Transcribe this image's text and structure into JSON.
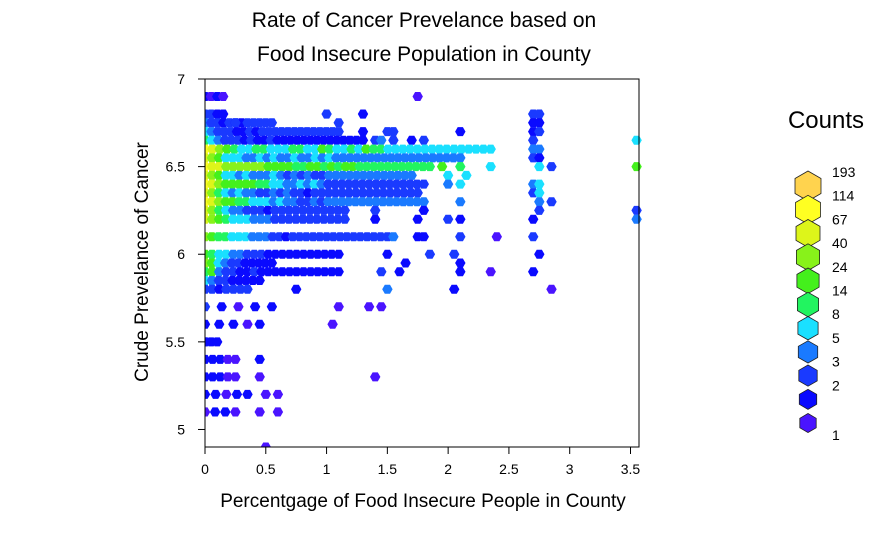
{
  "chart_data": {
    "type": "hexbin",
    "title": [
      "Rate of Cancer Prevelance based on",
      "Food Insecure Population in County"
    ],
    "xlabel": "Percentgage of Food Insecure People in County",
    "ylabel": "Crude Prevelance of Cancer",
    "xlim": [
      0,
      3.57
    ],
    "ylim": [
      4.9,
      7.0
    ],
    "x_ticks": [
      "0",
      "0.5",
      "1",
      "1.5",
      "2",
      "2.5",
      "3",
      "3.5"
    ],
    "y_ticks": [
      "5",
      "5.5",
      "6",
      "6.5",
      "7"
    ],
    "legend": {
      "title": "Counts",
      "placement": "right",
      "entries": [
        {
          "label": "193",
          "color": "#ffd34e"
        },
        {
          "label": "114",
          "color": "#ffff22"
        },
        {
          "label": "67",
          "color": "#ddf51a"
        },
        {
          "label": "40",
          "color": "#88f21a"
        },
        {
          "label": "24",
          "color": "#44f01c"
        },
        {
          "label": "14",
          "color": "#22f460"
        },
        {
          "label": "8",
          "color": "#1ae0ff"
        },
        {
          "label": "5",
          "color": "#1a7aff"
        },
        {
          "label": "3",
          "color": "#1a3aff"
        },
        {
          "label": "2",
          "color": "#0a0aff"
        },
        {
          "label": "1",
          "color": "#4a14ff"
        }
      ]
    },
    "rows": [
      {
        "y": 6.9,
        "x0": 0.0,
        "x1": 0.15,
        "n": 4,
        "pal": [
          1,
          0,
          1,
          0
        ],
        "extra": [
          {
            "x": 1.75,
            "c": 0
          }
        ]
      },
      {
        "y": 6.8,
        "x0": 0.0,
        "x1": 0.15,
        "n": 4,
        "pal": [
          2,
          2,
          1,
          1
        ],
        "extra": [
          {
            "x": 1.0,
            "c": 2
          },
          {
            "x": 1.3,
            "c": 1
          },
          {
            "x": 2.7,
            "c": 2
          },
          {
            "x": 2.75,
            "c": 2
          }
        ]
      },
      {
        "y": 6.75,
        "x0": 0.0,
        "x1": 0.55,
        "n": 12,
        "pal": [
          3,
          2,
          2,
          1,
          2,
          1,
          1,
          2
        ],
        "extra": [
          {
            "x": 0.25,
            "c": 2
          },
          {
            "x": 1.1,
            "c": 2
          },
          {
            "x": 2.7,
            "c": 1
          },
          {
            "x": 2.75,
            "c": 1
          }
        ]
      },
      {
        "y": 6.7,
        "x0": 0.0,
        "x1": 1.05,
        "n": 21,
        "pal": [
          4,
          3,
          2,
          2,
          2,
          1,
          1,
          2,
          1,
          2
        ],
        "extra": [
          {
            "x": 1.1,
            "c": 2
          },
          {
            "x": 1.3,
            "c": 1
          },
          {
            "x": 1.5,
            "c": 2
          },
          {
            "x": 1.55,
            "c": 2
          },
          {
            "x": 2.1,
            "c": 1
          },
          {
            "x": 2.7,
            "c": 1
          },
          {
            "x": 2.75,
            "c": 2
          }
        ]
      },
      {
        "y": 6.65,
        "x0": 0.0,
        "x1": 1.3,
        "n": 25,
        "pal": [
          5,
          4,
          3,
          2,
          2,
          2,
          1,
          2,
          1,
          1,
          2,
          1
        ],
        "extra": [
          {
            "x": 1.4,
            "c": 2
          },
          {
            "x": 1.45,
            "c": 3
          },
          {
            "x": 1.55,
            "c": 2
          },
          {
            "x": 1.7,
            "c": 1
          },
          {
            "x": 1.8,
            "c": 2
          },
          {
            "x": 2.7,
            "c": 2
          },
          {
            "x": 3.55,
            "c": 4
          }
        ]
      },
      {
        "y": 6.6,
        "x0": 0.0,
        "x1": 2.35,
        "n": 40,
        "pal": [
          9,
          8,
          7,
          6,
          5,
          4,
          4,
          5,
          5,
          4,
          4,
          4,
          5,
          5,
          4,
          4,
          6,
          5,
          4,
          4,
          5,
          4,
          6,
          5,
          5,
          4
        ],
        "extra": [
          {
            "x": 2.7,
            "c": 3
          },
          {
            "x": 2.75,
            "c": 3
          }
        ]
      },
      {
        "y": 6.55,
        "x0": 0.0,
        "x1": 2.1,
        "n": 38,
        "pal": [
          8,
          7,
          6,
          4,
          4,
          4,
          3,
          3,
          4,
          3,
          4,
          3,
          3,
          4,
          3,
          3,
          4,
          3,
          4,
          3,
          3
        ],
        "extra": [
          {
            "x": 2.7,
            "c": 2
          },
          {
            "x": 2.75,
            "c": 1
          }
        ]
      },
      {
        "y": 6.5,
        "x0": 0.0,
        "x1": 1.85,
        "n": 33,
        "pal": [
          9,
          8,
          8,
          7,
          7,
          7,
          7,
          7,
          7,
          6,
          6,
          6,
          6,
          5,
          5,
          6,
          6,
          5,
          6,
          5,
          6,
          6,
          5
        ],
        "extra": [
          {
            "x": 1.95,
            "c": 6
          },
          {
            "x": 2.1,
            "c": 5
          },
          {
            "x": 2.35,
            "c": 4
          },
          {
            "x": 2.75,
            "c": 4
          },
          {
            "x": 2.85,
            "c": 2
          },
          {
            "x": 3.55,
            "c": 6
          }
        ]
      },
      {
        "y": 6.45,
        "x0": 0.0,
        "x1": 1.7,
        "n": 31,
        "pal": [
          8,
          7,
          6,
          4,
          4,
          3,
          4,
          3,
          3,
          3,
          4,
          3,
          2,
          3,
          2,
          3,
          2,
          2,
          3
        ],
        "extra": [
          {
            "x": 2.0,
            "c": 4
          },
          {
            "x": 2.15,
            "c": 4
          }
        ]
      },
      {
        "y": 6.4,
        "x0": 0.0,
        "x1": 1.8,
        "n": 33,
        "pal": [
          9,
          8,
          7,
          6,
          6,
          6,
          6,
          6,
          5,
          5,
          4,
          4,
          3,
          3,
          4,
          3,
          4,
          3,
          2,
          2
        ],
        "extra": [
          {
            "x": 2.0,
            "c": 3
          },
          {
            "x": 2.1,
            "c": 4
          },
          {
            "x": 2.7,
            "c": 3
          },
          {
            "x": 2.75,
            "c": 4
          }
        ]
      },
      {
        "y": 6.35,
        "x0": 0.0,
        "x1": 1.75,
        "n": 32,
        "pal": [
          8,
          7,
          5,
          4,
          3,
          4,
          3,
          3,
          2,
          2,
          3,
          2,
          3,
          2,
          2,
          1,
          2,
          2
        ],
        "extra": [
          {
            "x": 2.7,
            "c": 2
          },
          {
            "x": 2.75,
            "c": 4
          }
        ]
      },
      {
        "y": 6.3,
        "x0": 0.0,
        "x1": 1.8,
        "n": 33,
        "pal": [
          9,
          8,
          7,
          6,
          6,
          5,
          5,
          4,
          4,
          4,
          3,
          4,
          3,
          3,
          2,
          2,
          3,
          2,
          3
        ],
        "extra": [
          {
            "x": 2.1,
            "c": 3
          },
          {
            "x": 2.75,
            "c": 3
          },
          {
            "x": 2.85,
            "c": 2
          }
        ]
      },
      {
        "y": 6.25,
        "x0": 0.0,
        "x1": 1.15,
        "n": 21,
        "pal": [
          8,
          7,
          5,
          4,
          3,
          3,
          2,
          2,
          2,
          1,
          2
        ],
        "extra": [
          {
            "x": 1.4,
            "c": 2
          },
          {
            "x": 1.8,
            "c": 1
          },
          {
            "x": 2.75,
            "c": 2
          },
          {
            "x": 3.55,
            "c": 2
          }
        ]
      },
      {
        "y": 6.2,
        "x0": 0.0,
        "x1": 1.15,
        "n": 21,
        "pal": [
          8,
          7,
          6,
          5,
          4,
          4,
          4,
          3,
          3,
          3,
          2,
          2
        ],
        "extra": [
          {
            "x": 1.4,
            "c": 1
          },
          {
            "x": 1.75,
            "c": 1
          },
          {
            "x": 2.0,
            "c": 2
          },
          {
            "x": 2.1,
            "c": 1
          },
          {
            "x": 2.7,
            "c": 1
          },
          {
            "x": 3.55,
            "c": 3
          }
        ]
      },
      {
        "y": 6.1,
        "x0": 0.0,
        "x1": 1.5,
        "n": 28,
        "pal": [
          7,
          6,
          5,
          5,
          4,
          4,
          4,
          3,
          3,
          3,
          2,
          2,
          1,
          2
        ],
        "extra": [
          {
            "x": 1.55,
            "c": 3
          },
          {
            "x": 1.75,
            "c": 1
          },
          {
            "x": 1.8,
            "c": 1
          },
          {
            "x": 2.1,
            "c": 2
          },
          {
            "x": 2.4,
            "c": 0
          },
          {
            "x": 2.7,
            "c": 2
          }
        ]
      },
      {
        "y": 6.0,
        "x0": 0.0,
        "x1": 1.1,
        "n": 20,
        "pal": [
          6,
          5,
          4,
          4,
          3,
          3,
          2,
          2,
          2,
          1,
          1
        ],
        "extra": [
          {
            "x": 1.5,
            "c": 1
          },
          {
            "x": 1.85,
            "c": 2
          },
          {
            "x": 2.05,
            "c": 2
          },
          {
            "x": 2.75,
            "c": 1
          }
        ]
      },
      {
        "y": 5.95,
        "x0": 0.0,
        "x1": 0.55,
        "n": 11,
        "pal": [
          7,
          6,
          4,
          3,
          2,
          2,
          1
        ],
        "extra": [
          {
            "x": 1.65,
            "c": 1
          },
          {
            "x": 2.1,
            "c": 1
          }
        ]
      },
      {
        "y": 5.9,
        "x0": 0.0,
        "x1": 1.1,
        "n": 20,
        "pal": [
          5,
          6,
          3,
          2,
          2,
          1,
          1,
          2,
          1,
          1
        ],
        "extra": [
          {
            "x": 1.45,
            "c": 2
          },
          {
            "x": 1.6,
            "c": 1
          },
          {
            "x": 2.1,
            "c": 1
          },
          {
            "x": 2.35,
            "c": 0
          },
          {
            "x": 2.7,
            "c": 1
          }
        ]
      },
      {
        "y": 5.85,
        "x0": 0.0,
        "x1": 0.45,
        "n": 9,
        "pal": [
          4,
          3,
          2,
          2,
          1
        ]
      },
      {
        "y": 5.8,
        "x0": 0.0,
        "x1": 0.35,
        "n": 7,
        "pal": [
          2,
          2,
          1,
          2
        ],
        "extra": [
          {
            "x": 0.75,
            "c": 1
          },
          {
            "x": 1.5,
            "c": 3
          },
          {
            "x": 2.05,
            "c": 1
          },
          {
            "x": 2.85,
            "c": 0
          }
        ]
      },
      {
        "y": 5.7,
        "x0": 0.0,
        "x1": 0.55,
        "n": 5,
        "pal": [
          2,
          1,
          0,
          1,
          1
        ],
        "extra": [
          {
            "x": 1.1,
            "c": 0
          },
          {
            "x": 1.35,
            "c": 0
          },
          {
            "x": 1.45,
            "c": 0
          }
        ]
      },
      {
        "y": 5.6,
        "x0": 0.0,
        "x1": 0.35,
        "n": 4,
        "pal": [
          1,
          1,
          1,
          0
        ],
        "extra": [
          {
            "x": 0.45,
            "c": 1
          },
          {
            "x": 1.05,
            "c": 0
          }
        ]
      },
      {
        "y": 5.5,
        "x0": 0.0,
        "x1": 0.1,
        "n": 3,
        "pal": [
          2,
          1,
          1
        ],
        "extra": [
          {
            "x": 0.0,
            "c": 1
          }
        ]
      },
      {
        "y": 5.4,
        "x0": 0.0,
        "x1": 0.25,
        "n": 5,
        "pal": [
          1,
          1,
          1,
          0
        ],
        "extra": [
          {
            "x": 0.45,
            "c": 1
          }
        ]
      },
      {
        "y": 5.3,
        "x0": 0.0,
        "x1": 0.25,
        "n": 5,
        "pal": [
          1,
          1,
          1,
          0
        ],
        "extra": [
          {
            "x": 0.45,
            "c": 0
          },
          {
            "x": 1.4,
            "c": 0
          }
        ]
      },
      {
        "y": 5.2,
        "x0": 0.0,
        "x1": 0.35,
        "n": 5,
        "pal": [
          1,
          1,
          0,
          1
        ],
        "extra": [
          {
            "x": 0.5,
            "c": 0
          },
          {
            "x": 0.6,
            "c": 0
          }
        ]
      },
      {
        "y": 5.1,
        "x0": 0.0,
        "x1": 0.25,
        "n": 4,
        "pal": [
          0,
          1,
          1,
          0
        ],
        "extra": [
          {
            "x": 0.45,
            "c": 0
          },
          {
            "x": 0.6,
            "c": 0
          }
        ]
      },
      {
        "y": 4.9,
        "x0": 0.5,
        "x1": 0.5,
        "n": 1,
        "pal": [
          0
        ]
      }
    ]
  }
}
